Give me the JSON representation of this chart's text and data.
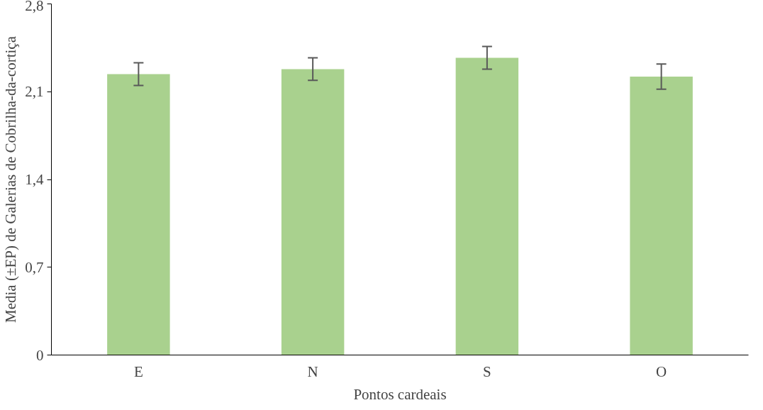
{
  "chart_data": {
    "type": "bar",
    "xlabel": "Pontos cardeais",
    "ylabel": "Media (±EP) de Galerias de Cobrilha-da-cortiça",
    "categories": [
      "E",
      "N",
      "S",
      "O"
    ],
    "values": [
      2.24,
      2.28,
      2.37,
      2.22
    ],
    "errors": [
      0.09,
      0.09,
      0.09,
      0.1
    ],
    "color": "#a9d18e",
    "ylim": [
      0,
      2.8
    ],
    "yticks": [
      {
        "value": 0,
        "label": "0"
      },
      {
        "value": 0.7,
        "label": "0,7"
      },
      {
        "value": 1.4,
        "label": "1,4"
      },
      {
        "value": 2.1,
        "label": "2,1"
      },
      {
        "value": 2.8,
        "label": "2,8"
      }
    ],
    "grid": false
  }
}
